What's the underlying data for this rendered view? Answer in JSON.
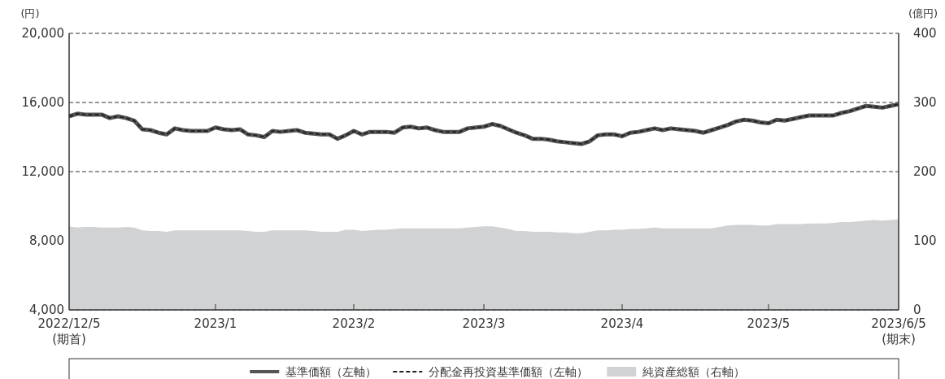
{
  "chart_data": {
    "type": "line",
    "categories": [
      "2022/12/5\n(期首)",
      null,
      null,
      null,
      null,
      null,
      null,
      null,
      null,
      null,
      null,
      null,
      null,
      null,
      null,
      null,
      null,
      null,
      "2023/1",
      null,
      null,
      null,
      null,
      null,
      null,
      null,
      null,
      null,
      null,
      null,
      null,
      null,
      null,
      null,
      null,
      "2023/2",
      null,
      null,
      null,
      null,
      null,
      null,
      null,
      null,
      null,
      null,
      null,
      null,
      null,
      null,
      null,
      "2023/3",
      null,
      null,
      null,
      null,
      null,
      null,
      null,
      null,
      null,
      null,
      null,
      null,
      null,
      null,
      null,
      null,
      "2023/4",
      null,
      null,
      null,
      null,
      null,
      null,
      null,
      null,
      null,
      null,
      null,
      null,
      null,
      null,
      null,
      null,
      null,
      "2023/5",
      null,
      null,
      null,
      null,
      null,
      null,
      null,
      null,
      null,
      null,
      null,
      null,
      null,
      null,
      null,
      "2023/6/5\n(期末)"
    ],
    "series": [
      {
        "name": "基準価額（左軸）",
        "color": "#555555",
        "line_style": "solid",
        "values": [
          15200,
          15350,
          15300,
          15300,
          15300,
          15100,
          15200,
          15100,
          14950,
          14450,
          14400,
          14250,
          14150,
          14500,
          14400,
          14350,
          14350,
          14350,
          14550,
          14450,
          14400,
          14450,
          14150,
          14100,
          14000,
          14350,
          14300,
          14350,
          14400,
          14250,
          14200,
          14150,
          14150,
          13900,
          14100,
          14350,
          14150,
          14300,
          14300,
          14300,
          14250,
          14550,
          14600,
          14500,
          14550,
          14400,
          14300,
          14300,
          14300,
          14500,
          14550,
          14600,
          14750,
          14650,
          14450,
          14250,
          14100,
          13900,
          13900,
          13850,
          13750,
          13700,
          13650,
          13600,
          13750,
          14100,
          14150,
          14150,
          14050,
          14250,
          14300,
          14400,
          14500,
          14400,
          14500,
          14450,
          14400,
          14350,
          14250,
          14400,
          14550,
          14700,
          14900,
          15000,
          14950,
          14850,
          14800,
          15000,
          14950,
          15050,
          15150,
          15250,
          15250,
          15250,
          15250,
          15400,
          15500,
          15650,
          15800,
          15750,
          15700,
          15800,
          15900
        ]
      },
      {
        "name": "分配金再投資基準価額（左軸）",
        "color": "#222222",
        "line_style": "dashed",
        "values": [
          15200,
          15350,
          15300,
          15300,
          15300,
          15100,
          15200,
          15100,
          14950,
          14450,
          14400,
          14250,
          14150,
          14500,
          14400,
          14350,
          14350,
          14350,
          14550,
          14450,
          14400,
          14450,
          14150,
          14100,
          14000,
          14350,
          14300,
          14350,
          14400,
          14250,
          14200,
          14150,
          14150,
          13900,
          14100,
          14350,
          14150,
          14300,
          14300,
          14300,
          14250,
          14550,
          14600,
          14500,
          14550,
          14400,
          14300,
          14300,
          14300,
          14500,
          14550,
          14600,
          14750,
          14650,
          14450,
          14250,
          14100,
          13900,
          13900,
          13850,
          13750,
          13700,
          13650,
          13600,
          13750,
          14100,
          14150,
          14150,
          14050,
          14250,
          14300,
          14400,
          14500,
          14400,
          14500,
          14450,
          14400,
          14350,
          14250,
          14400,
          14550,
          14700,
          14900,
          15000,
          14950,
          14850,
          14800,
          15000,
          14950,
          15050,
          15150,
          15250,
          15250,
          15250,
          15250,
          15400,
          15500,
          15650,
          15800,
          15750,
          15700,
          15800,
          15900
        ]
      },
      {
        "name": "純資産総額（右軸）",
        "type": "area",
        "axis": "y2",
        "color": "#d1d2d4",
        "values": [
          121,
          119,
          120,
          120,
          119,
          119,
          119,
          120,
          119,
          115,
          114,
          114,
          113,
          115,
          115,
          115,
          115,
          115,
          115,
          115,
          115,
          115,
          114,
          113,
          113,
          115,
          115,
          115,
          115,
          115,
          114,
          113,
          113,
          113,
          116,
          116,
          114,
          115,
          116,
          116,
          117,
          118,
          118,
          118,
          118,
          118,
          118,
          118,
          118,
          119,
          120,
          121,
          121,
          119,
          117,
          114,
          114,
          113,
          113,
          113,
          112,
          112,
          111,
          111,
          113,
          115,
          115,
          116,
          116,
          117,
          117,
          118,
          119,
          118,
          118,
          118,
          118,
          118,
          118,
          118,
          120,
          122,
          123,
          123,
          123,
          122,
          122,
          124,
          124,
          124,
          124,
          125,
          125,
          125,
          126,
          127,
          127,
          128,
          129,
          130,
          129,
          130,
          131
        ]
      }
    ],
    "ylabel": "(円)",
    "y2label": "(億円)",
    "ylim": [
      4000,
      20000
    ],
    "yticks": [
      {
        "value": 4000,
        "label": "4,000"
      },
      {
        "value": 8000,
        "label": "8,000"
      },
      {
        "value": 12000,
        "label": "12,000"
      },
      {
        "value": 16000,
        "label": "16,000"
      },
      {
        "value": 20000,
        "label": "20,000"
      }
    ],
    "y2lim": [
      0,
      400
    ],
    "y2ticks": [
      0,
      100,
      200,
      300,
      400
    ],
    "grid": "y",
    "legend": "bottom",
    "marker": "none"
  }
}
